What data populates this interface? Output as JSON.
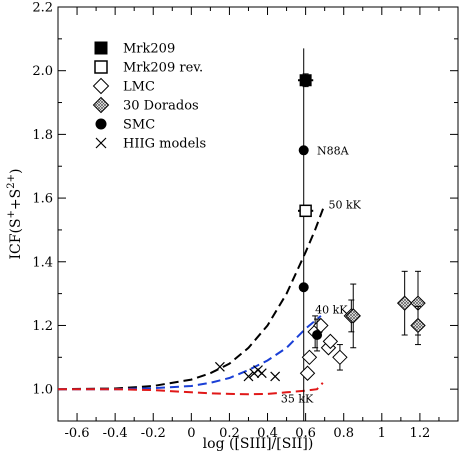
{
  "chart_data": {
    "type": "scatter",
    "xlabel": "log ([SIII]/[SII])",
    "ylabel_parts": [
      "ICF(S",
      "+",
      "+S",
      "2+",
      ")"
    ],
    "xlim": [
      -0.7,
      1.4
    ],
    "ylim": [
      0.9,
      2.2
    ],
    "xticks": [
      -0.6,
      -0.4,
      -0.2,
      0.0,
      0.2,
      0.4,
      0.6,
      0.8,
      1.0,
      1.2
    ],
    "xtick_labels": [
      "-0.6",
      "-0.4",
      "-0.2",
      "0",
      "0.2",
      "0.4",
      "0.6",
      "0.8",
      "1",
      "1.2"
    ],
    "yticks": [
      1.0,
      1.2,
      1.4,
      1.6,
      1.8,
      2.0,
      2.2
    ],
    "ytick_labels": [
      "1.0",
      "1.2",
      "1.4",
      "1.6",
      "1.8",
      "2.0",
      "2.2"
    ],
    "grid": false,
    "legend_position": "top-left",
    "legend": [
      {
        "label": "Mrk209",
        "marker": "square-filled"
      },
      {
        "label": "Mrk209 rev.",
        "marker": "square-open"
      },
      {
        "label": "LMC",
        "marker": "diamond-open"
      },
      {
        "label": "30 Dorados",
        "marker": "diamond-hatched"
      },
      {
        "label": "SMC",
        "marker": "circle-filled"
      },
      {
        "label": "HIIG models",
        "marker": "cross"
      }
    ],
    "annotations": [
      {
        "text": "N88A",
        "x": 0.66,
        "y": 1.75
      },
      {
        "text": "50 kK",
        "x": 0.72,
        "y": 1.58
      },
      {
        "text": "40 kK",
        "x": 0.65,
        "y": 1.25
      },
      {
        "text": "35 kK",
        "x": 0.47,
        "y": 0.97
      }
    ],
    "vertical_line": {
      "x": 0.59,
      "y_from": 0.9,
      "y_to": 2.07
    },
    "series": [
      {
        "name": "Mrk209",
        "marker": "square-filled",
        "color": "#000000",
        "points": [
          {
            "x": 0.6,
            "y": 1.97,
            "xerr": 0.04,
            "yerr": 0.02
          }
        ]
      },
      {
        "name": "Mrk209 rev.",
        "marker": "square-open",
        "color": "#000000",
        "points": [
          {
            "x": 0.6,
            "y": 1.56,
            "xerr": 0.04,
            "yerr": 0.01
          }
        ]
      },
      {
        "name": "LMC",
        "marker": "diamond-open",
        "color": "#000000",
        "points": [
          {
            "x": 0.61,
            "y": 1.05
          },
          {
            "x": 0.62,
            "y": 1.1
          },
          {
            "x": 0.65,
            "y": 1.18,
            "yerr": 0.05
          },
          {
            "x": 0.68,
            "y": 1.2
          },
          {
            "x": 0.72,
            "y": 1.13
          },
          {
            "x": 0.73,
            "y": 1.15
          },
          {
            "x": 0.78,
            "y": 1.1,
            "yerr": 0.04
          },
          {
            "x": 0.84,
            "y": 1.23,
            "yerr": 0.05
          }
        ]
      },
      {
        "name": "30 Dorados",
        "marker": "diamond-hatched",
        "color": "#000000",
        "points": [
          {
            "x": 0.85,
            "y": 1.23,
            "yerr": 0.1
          },
          {
            "x": 1.12,
            "y": 1.27,
            "yerr": 0.1
          },
          {
            "x": 1.19,
            "y": 1.27,
            "yerr": 0.1
          },
          {
            "x": 1.19,
            "y": 1.2,
            "yerr": 0.06
          }
        ]
      },
      {
        "name": "SMC",
        "marker": "circle-filled",
        "color": "#000000",
        "points": [
          {
            "x": 0.59,
            "y": 1.75
          },
          {
            "x": 0.59,
            "y": 1.32
          },
          {
            "x": 0.66,
            "y": 1.17,
            "yerr": 0.05,
            "xerr": 0.02
          }
        ]
      },
      {
        "name": "HIIG models",
        "marker": "cross",
        "color": "#000000",
        "points": [
          {
            "x": 0.15,
            "y": 1.07
          },
          {
            "x": 0.3,
            "y": 1.04
          },
          {
            "x": 0.33,
            "y": 1.05
          },
          {
            "x": 0.35,
            "y": 1.06
          },
          {
            "x": 0.37,
            "y": 1.05
          },
          {
            "x": 0.44,
            "y": 1.04
          }
        ]
      }
    ],
    "model_curves": [
      {
        "label": "50 kK",
        "color": "#000000",
        "dash": "dashed",
        "points": [
          [
            -0.7,
            1.0
          ],
          [
            -0.4,
            1.002
          ],
          [
            -0.2,
            1.01
          ],
          [
            0.0,
            1.03
          ],
          [
            0.1,
            1.05
          ],
          [
            0.2,
            1.08
          ],
          [
            0.3,
            1.13
          ],
          [
            0.4,
            1.2
          ],
          [
            0.5,
            1.3
          ],
          [
            0.6,
            1.43
          ],
          [
            0.65,
            1.5
          ],
          [
            0.7,
            1.58
          ]
        ]
      },
      {
        "label": "40 kK",
        "color": "#1a3fd6",
        "dash": "dashed",
        "points": [
          [
            -0.7,
            1.0
          ],
          [
            -0.4,
            1.0
          ],
          [
            -0.2,
            1.003
          ],
          [
            0.0,
            1.01
          ],
          [
            0.1,
            1.02
          ],
          [
            0.2,
            1.035
          ],
          [
            0.3,
            1.06
          ],
          [
            0.4,
            1.09
          ],
          [
            0.5,
            1.13
          ],
          [
            0.55,
            1.16
          ],
          [
            0.6,
            1.19
          ],
          [
            0.68,
            1.23
          ]
        ]
      },
      {
        "label": "35 kK",
        "color": "#e01818",
        "dash": "dashed",
        "points": [
          [
            -0.7,
            1.0
          ],
          [
            -0.4,
            1.0
          ],
          [
            -0.2,
            0.997
          ],
          [
            0.0,
            0.99
          ],
          [
            0.1,
            0.987
          ],
          [
            0.2,
            0.985
          ],
          [
            0.3,
            0.984
          ],
          [
            0.4,
            0.985
          ],
          [
            0.5,
            0.99
          ],
          [
            0.6,
            0.995
          ],
          [
            0.66,
            1.0
          ],
          [
            0.69,
            1.02
          ]
        ]
      }
    ]
  }
}
